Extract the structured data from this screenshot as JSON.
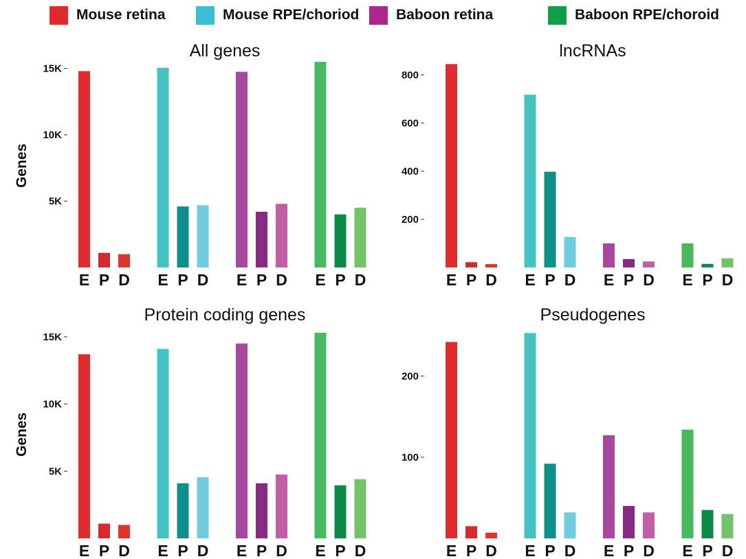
{
  "legend": [
    {
      "label": "Mouse retina",
      "color": "#e0282e"
    },
    {
      "label": "Mouse RPE/choriod",
      "color": "#3bbfd6"
    },
    {
      "label": "Baboon retina",
      "color": "#ad2592"
    },
    {
      "label": "Baboon RPE/choroid",
      "color": "#0e9f48"
    }
  ],
  "groups": [
    {
      "name": "Mouse retina",
      "colors": [
        "#e02b2f",
        "#d62a30",
        "#e0342f"
      ]
    },
    {
      "name": "Mouse RPE/choriod",
      "colors": [
        "#45c2c2",
        "#0f8f8a",
        "#72ccdf"
      ]
    },
    {
      "name": "Baboon retina",
      "colors": [
        "#a8479e",
        "#872a83",
        "#c25da8"
      ]
    },
    {
      "name": "Baboon RPE/choroid",
      "colors": [
        "#48b95f",
        "#0b8a45",
        "#73c36b"
      ]
    }
  ],
  "chart_data": [
    {
      "type": "bar",
      "title": "All genes",
      "ylabel": "Genes",
      "categories": [
        "E",
        "P",
        "D"
      ],
      "ylim": [
        0,
        15600
      ],
      "yticks": [
        {
          "value": 5000,
          "label": "5K"
        },
        {
          "value": 10000,
          "label": "10K"
        },
        {
          "value": 15000,
          "label": "15K"
        }
      ],
      "series": [
        {
          "name": "Mouse retina",
          "values": [
            14800,
            1100,
            1000
          ]
        },
        {
          "name": "Mouse RPE/choriod",
          "values": [
            15050,
            4600,
            4700
          ]
        },
        {
          "name": "Baboon retina",
          "values": [
            14750,
            4200,
            4800
          ]
        },
        {
          "name": "Baboon RPE/choroid",
          "values": [
            15500,
            4000,
            4500
          ]
        }
      ]
    },
    {
      "type": "bar",
      "title": "lncRNAs",
      "ylabel": "",
      "categories": [
        "E",
        "P",
        "D"
      ],
      "ylim": [
        0,
        860
      ],
      "yticks": [
        {
          "value": 200,
          "label": "200"
        },
        {
          "value": 400,
          "label": "400"
        },
        {
          "value": 600,
          "label": "600"
        },
        {
          "value": 800,
          "label": "800"
        }
      ],
      "series": [
        {
          "name": "Mouse retina",
          "values": [
            845,
            22,
            14
          ]
        },
        {
          "name": "Mouse RPE/choriod",
          "values": [
            718,
            398,
            127
          ]
        },
        {
          "name": "Baboon retina",
          "values": [
            100,
            35,
            25
          ]
        },
        {
          "name": "Baboon RPE/choroid",
          "values": [
            100,
            15,
            38
          ]
        }
      ]
    },
    {
      "type": "bar",
      "title": "Protein coding genes",
      "ylabel": "Genes",
      "categories": [
        "E",
        "P",
        "D"
      ],
      "ylim": [
        0,
        15400
      ],
      "yticks": [
        {
          "value": 5000,
          "label": "5K"
        },
        {
          "value": 10000,
          "label": "10K"
        },
        {
          "value": 15000,
          "label": "15K"
        }
      ],
      "series": [
        {
          "name": "Mouse retina",
          "values": [
            13700,
            1100,
            1000
          ]
        },
        {
          "name": "Mouse RPE/choriod",
          "values": [
            14100,
            4100,
            4550
          ]
        },
        {
          "name": "Baboon retina",
          "values": [
            14500,
            4100,
            4750
          ]
        },
        {
          "name": "Baboon RPE/choroid",
          "values": [
            15300,
            3950,
            4400
          ]
        }
      ]
    },
    {
      "type": "bar",
      "title": "Pseudogenes",
      "ylabel": "",
      "categories": [
        "E",
        "P",
        "D"
      ],
      "ylim": [
        0,
        255
      ],
      "yticks": [
        {
          "value": 100,
          "label": "100"
        },
        {
          "value": 200,
          "label": "200"
        }
      ],
      "series": [
        {
          "name": "Mouse retina",
          "values": [
            242,
            15,
            7
          ]
        },
        {
          "name": "Mouse RPE/choriod",
          "values": [
            253,
            92,
            32
          ]
        },
        {
          "name": "Baboon retina",
          "values": [
            127,
            40,
            32
          ]
        },
        {
          "name": "Baboon RPE/choroid",
          "values": [
            134,
            35,
            30
          ]
        }
      ]
    }
  ]
}
